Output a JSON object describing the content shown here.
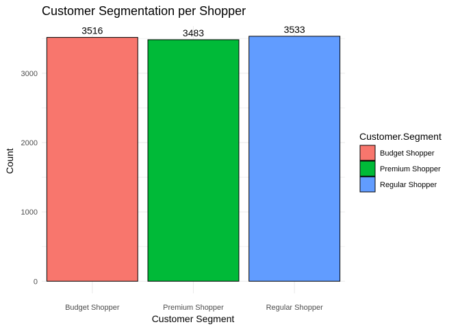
{
  "chart_data": {
    "type": "bar",
    "title": "Customer Segmentation per Shopper",
    "xlabel": "Customer Segment",
    "ylabel": "Count",
    "categories": [
      "Budget Shopper",
      "Premium Shopper",
      "Regular Shopper"
    ],
    "values": [
      3516,
      3483,
      3533
    ],
    "data_labels": [
      "3516",
      "3483",
      "3533"
    ],
    "colors": [
      "#F8766D",
      "#00BA38",
      "#619CFF"
    ],
    "ylim": [
      -175,
      3680
    ],
    "yticks": [
      0,
      1000,
      2000,
      3000
    ],
    "ytick_labels": [
      "0",
      "1000",
      "2000",
      "3000"
    ],
    "y_minor_ticks": [
      500,
      1500,
      2500,
      3500
    ],
    "grid": true,
    "legend": {
      "title": "Customer.Segment",
      "position": "right",
      "entries": [
        "Budget Shopper",
        "Premium Shopper",
        "Regular Shopper"
      ]
    }
  }
}
